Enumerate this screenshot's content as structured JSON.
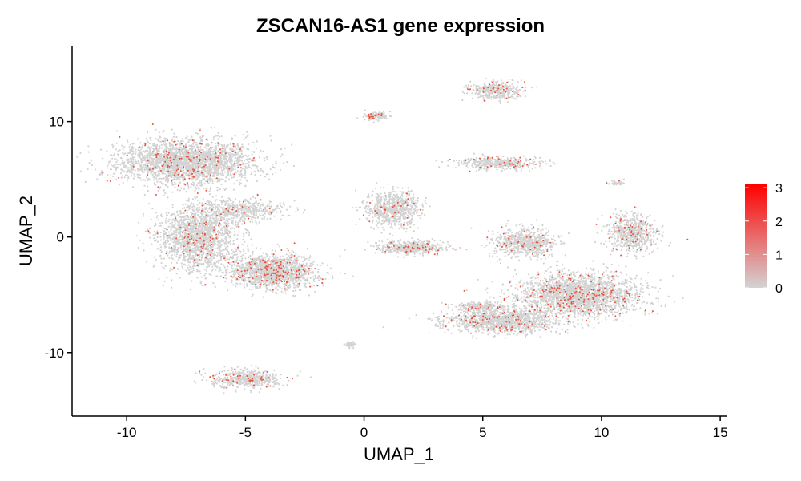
{
  "chart_data": {
    "type": "scatter",
    "title": "ZSCAN16-AS1 gene expression",
    "xlabel": "UMAP_1",
    "ylabel": "UMAP_2",
    "xlim": [
      -12.3,
      15.3
    ],
    "ylim": [
      -15.5,
      16.5
    ],
    "x_ticks": [
      -10,
      -5,
      0,
      5,
      10,
      15
    ],
    "x_tick_labels": [
      "-10",
      "-5",
      "0",
      "5",
      "10",
      "15"
    ],
    "y_ticks": [
      -10,
      0,
      10
    ],
    "y_tick_labels": [
      "-10",
      "0",
      "10"
    ],
    "grid": false,
    "legend": {
      "placement": "right",
      "type": "colorbar",
      "min": 0,
      "max": 3.1,
      "ticks": [
        0,
        1,
        2,
        3
      ],
      "tick_labels": [
        "0",
        "1",
        "2",
        "3"
      ],
      "low_color": "#d3d3d3",
      "high_color": "#ff0000"
    },
    "point_colors": {
      "expressed": "#e8553d",
      "not_expressed": "#d3d3d3"
    },
    "clusters": [
      {
        "center": [
          -7.5,
          6.5
        ],
        "spread": [
          2.6,
          1.7
        ],
        "count": 2600,
        "expr_rate": 0.07
      },
      {
        "center": [
          -7.0,
          0.0
        ],
        "spread": [
          1.5,
          2.6
        ],
        "count": 1700,
        "expr_rate": 0.05
      },
      {
        "center": [
          -3.8,
          -3.0
        ],
        "spread": [
          1.6,
          1.3
        ],
        "count": 1500,
        "expr_rate": 0.09
      },
      {
        "center": [
          -5.2,
          2.3
        ],
        "spread": [
          1.6,
          0.9
        ],
        "count": 500,
        "expr_rate": 0.04
      },
      {
        "center": [
          -5.0,
          -12.3
        ],
        "spread": [
          1.3,
          0.7
        ],
        "count": 550,
        "expr_rate": 0.08
      },
      {
        "center": [
          1.2,
          2.5
        ],
        "spread": [
          1.0,
          1.4
        ],
        "count": 700,
        "expr_rate": 0.05
      },
      {
        "center": [
          2.0,
          -0.9
        ],
        "spread": [
          1.4,
          0.5
        ],
        "count": 450,
        "expr_rate": 0.07
      },
      {
        "center": [
          -0.6,
          -9.3
        ],
        "spread": [
          0.2,
          0.2
        ],
        "count": 50,
        "expr_rate": 0.0
      },
      {
        "center": [
          0.5,
          10.5
        ],
        "spread": [
          0.5,
          0.3
        ],
        "count": 130,
        "expr_rate": 0.12
      },
      {
        "center": [
          5.5,
          12.7
        ],
        "spread": [
          1.0,
          0.7
        ],
        "count": 380,
        "expr_rate": 0.08
      },
      {
        "center": [
          5.6,
          6.4
        ],
        "spread": [
          1.6,
          0.5
        ],
        "count": 450,
        "expr_rate": 0.06
      },
      {
        "center": [
          6.8,
          -0.5
        ],
        "spread": [
          1.2,
          1.1
        ],
        "count": 650,
        "expr_rate": 0.07
      },
      {
        "center": [
          9.0,
          -5.0
        ],
        "spread": [
          2.4,
          1.7
        ],
        "count": 2200,
        "expr_rate": 0.08
      },
      {
        "center": [
          5.8,
          -7.2
        ],
        "spread": [
          2.2,
          1.0
        ],
        "count": 1300,
        "expr_rate": 0.09
      },
      {
        "center": [
          11.3,
          0.3
        ],
        "spread": [
          1.0,
          1.5
        ],
        "count": 650,
        "expr_rate": 0.07
      },
      {
        "center": [
          10.6,
          4.7
        ],
        "spread": [
          0.3,
          0.2
        ],
        "count": 40,
        "expr_rate": 0.15
      },
      {
        "center": [
          4.8,
          -6.0
        ],
        "spread": [
          0.8,
          0.3
        ],
        "count": 200,
        "expr_rate": 0.05
      }
    ]
  }
}
